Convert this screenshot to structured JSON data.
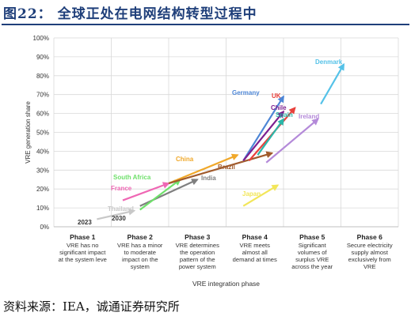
{
  "figure": {
    "title": "图22：  全球正处在电网结构转型过程中",
    "source": "资料来源：IEA，诚通证券研究所"
  },
  "chart_data": {
    "type": "arrow-trajectory",
    "ylabel": "VRE generation share",
    "xlabel": "VRE integration phase",
    "ylim": [
      0,
      100
    ],
    "yticks": [
      "0%",
      "10%",
      "20%",
      "30%",
      "40%",
      "50%",
      "60%",
      "70%",
      "80%",
      "90%",
      "100%"
    ],
    "grid": true,
    "phases": [
      {
        "name": "Phase 1",
        "desc": [
          "VRE has no",
          "significant impact",
          "at the system leve"
        ]
      },
      {
        "name": "Phase 2",
        "desc": [
          "VRE has a minor",
          "to moderate",
          "impact on the",
          "system"
        ]
      },
      {
        "name": "Phase 3",
        "desc": [
          "VRE determines",
          "the operation",
          "pattern of the",
          "power system"
        ]
      },
      {
        "name": "Phase 4",
        "desc": [
          "VRE meets",
          "almost all",
          "demand at times"
        ]
      },
      {
        "name": "Phase 5",
        "desc": [
          "Significant",
          "volumes of",
          "surplus VRE",
          "across the year"
        ]
      },
      {
        "name": "Phase 6",
        "desc": [
          "Secure electricity",
          "supply almost",
          "exclusively from",
          "VRE"
        ]
      }
    ],
    "year_labels": {
      "start": "2023",
      "end": "2030"
    },
    "series": [
      {
        "name": "",
        "color": "#c8c8c8",
        "from": [
          0.75,
          4
        ],
        "to": [
          1.4,
          8.5
        ]
      },
      {
        "name": "Thailand",
        "color": "#c8c8c8",
        "from": [
          0,
          0
        ],
        "to": [
          0,
          0
        ]
      },
      {
        "name": "Japan",
        "color": "#f2e65a",
        "from": [
          3.3,
          11
        ],
        "to": [
          3.9,
          22
        ]
      },
      {
        "name": "India",
        "color": "#7f7f7f",
        "from": [
          1.5,
          11
        ],
        "to": [
          2.5,
          25
        ]
      },
      {
        "name": "France",
        "color": "#ef67b4",
        "from": [
          1.2,
          14
        ],
        "to": [
          2.0,
          23
        ]
      },
      {
        "name": "South Africa",
        "color": "#6fe06b",
        "from": [
          1.5,
          9
        ],
        "to": [
          2.2,
          25
        ]
      },
      {
        "name": "China",
        "color": "#f0a82a",
        "from": [
          2.0,
          23
        ],
        "to": [
          3.2,
          38
        ]
      },
      {
        "name": "Brazil",
        "color": "#a05a2c",
        "from": [
          2.0,
          23
        ],
        "to": [
          3.8,
          39
        ]
      },
      {
        "name": "Germany",
        "color": "#4d86d6",
        "from": [
          3.3,
          35
        ],
        "to": [
          4.0,
          69
        ]
      },
      {
        "name": "UK",
        "color": "#e8413c",
        "from": [
          3.4,
          35
        ],
        "to": [
          4.2,
          63
        ]
      },
      {
        "name": "Chile",
        "color": "#7d1f8f",
        "from": [
          3.3,
          35
        ],
        "to": [
          4.0,
          61
        ]
      },
      {
        "name": "Spain",
        "color": "#2bb7a9",
        "from": [
          3.55,
          38
        ],
        "to": [
          4.0,
          57
        ]
      },
      {
        "name": "Ireland",
        "color": "#b48ad9",
        "from": [
          3.7,
          34
        ],
        "to": [
          4.6,
          57
        ]
      },
      {
        "name": "Denmark",
        "color": "#55c2e8",
        "from": [
          4.65,
          65
        ],
        "to": [
          5.05,
          86
        ]
      }
    ]
  }
}
